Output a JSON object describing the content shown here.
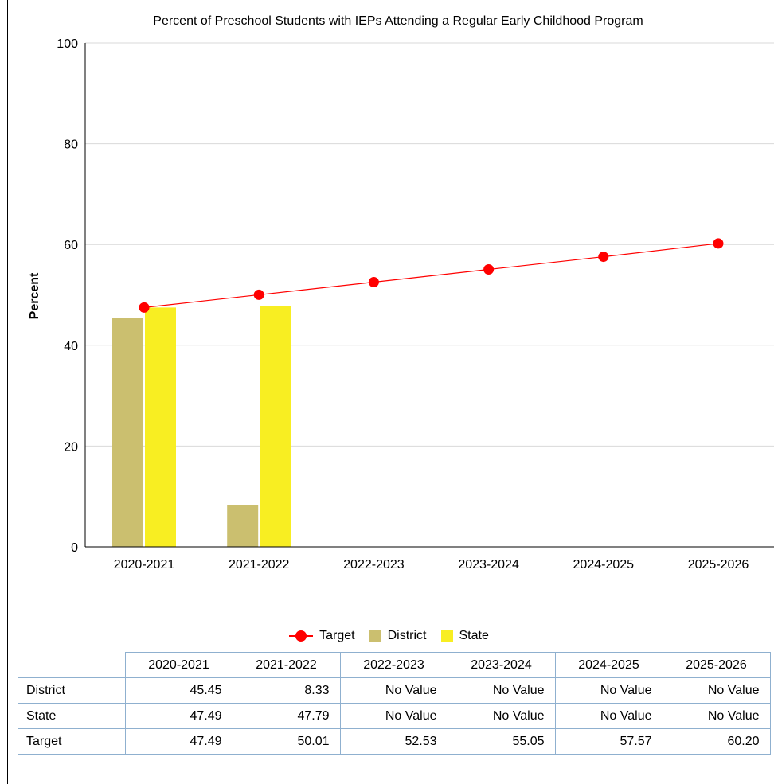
{
  "colors": {
    "target": "#ff0000",
    "district": "#cbbf6f",
    "state": "#f8ee22",
    "grid": "#d9d9d9",
    "table_border": "#8fb0cf"
  },
  "chart_data": {
    "type": "bar",
    "title": "Percent of Preschool Students with IEPs Attending a Regular Early Childhood Program",
    "xlabel": "",
    "ylabel": "Percent",
    "ylim": [
      0,
      100
    ],
    "yticks": [
      "0",
      "20",
      "40",
      "60",
      "80",
      "100"
    ],
    "grid": true,
    "legend_position": "bottom",
    "categories": [
      "2020-2021",
      "2021-2022",
      "2022-2023",
      "2023-2024",
      "2024-2025",
      "2025-2026"
    ],
    "series": [
      {
        "name": "District",
        "type": "bar",
        "color": "#cbbf6f",
        "values": [
          45.45,
          8.33,
          null,
          null,
          null,
          null
        ]
      },
      {
        "name": "State",
        "type": "bar",
        "color": "#f8ee22",
        "values": [
          47.49,
          47.79,
          null,
          null,
          null,
          null
        ]
      },
      {
        "name": "Target",
        "type": "line",
        "color": "#ff0000",
        "values": [
          47.49,
          50.01,
          52.53,
          55.05,
          57.57,
          60.2
        ]
      }
    ]
  },
  "legend": [
    "Target",
    "District",
    "State"
  ],
  "table": {
    "columns": [
      "2020-2021",
      "2021-2022",
      "2022-2023",
      "2023-2024",
      "2024-2025",
      "2025-2026"
    ],
    "rows": [
      {
        "label": "District",
        "cells": [
          "45.45",
          "8.33",
          "No Value",
          "No Value",
          "No Value",
          "No Value"
        ]
      },
      {
        "label": "State",
        "cells": [
          "47.49",
          "47.79",
          "No Value",
          "No Value",
          "No Value",
          "No Value"
        ]
      },
      {
        "label": "Target",
        "cells": [
          "47.49",
          "50.01",
          "52.53",
          "55.05",
          "57.57",
          "60.20"
        ]
      }
    ]
  }
}
